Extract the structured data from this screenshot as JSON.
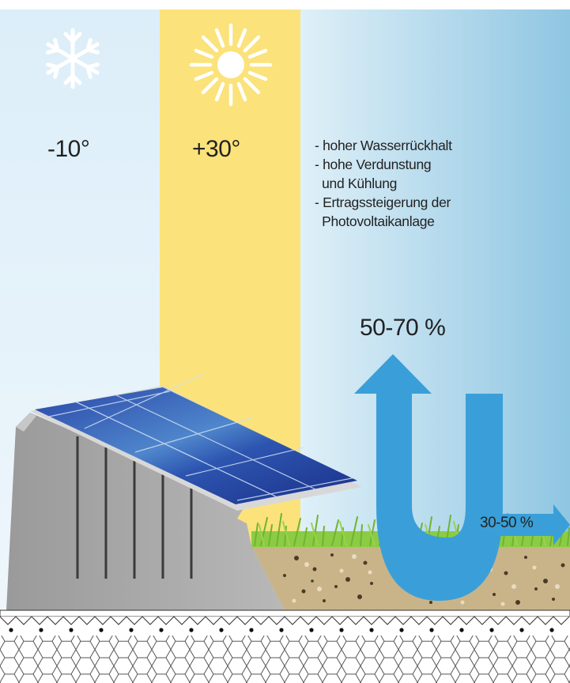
{
  "climate": {
    "cold_temp": "-10°",
    "hot_temp": "+30°",
    "cold_icon": "snowflake-icon",
    "hot_icon": "sun-icon"
  },
  "benefits": [
    "- hoher Wasserrückhalt",
    "- hohe Verdunstung",
    "  und Kühlung",
    "- Ertragssteigerung der",
    "  Photovoltaikanlage"
  ],
  "flows": {
    "evaporation_percent": "50-70 %",
    "runoff_percent": "30-50 %"
  },
  "colors": {
    "cold_zone": "#e8f3fa",
    "hot_zone": "#fbe27a",
    "arrow": "#3a9fd8",
    "solar_panel": "#1e3c98",
    "substrate": "#c9b48a",
    "grass": "#7cbf3a",
    "mount": "#a9a9a9"
  }
}
